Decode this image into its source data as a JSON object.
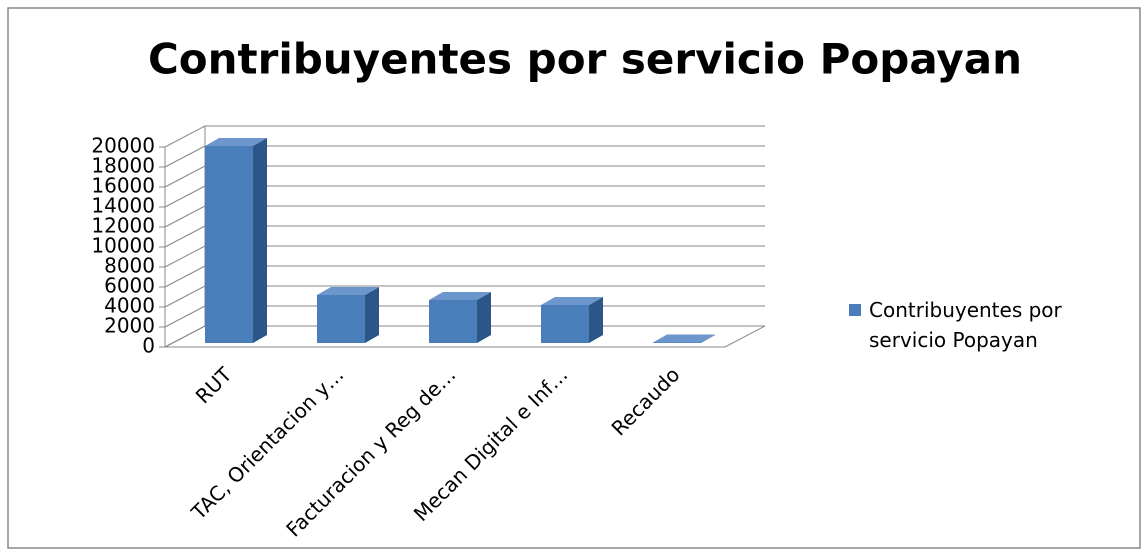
{
  "chart_data": {
    "type": "bar3d",
    "title": "Contribuyentes por servicio Popayan",
    "categories": [
      "RUT",
      "TAC, Orientacion y…",
      "Facturacion y Reg de…",
      "Mecan Digital e Inf…",
      "Recaudo"
    ],
    "series": [
      {
        "name": "Contribuyentes por servicio Popayan",
        "color": "#4a7ebb",
        "values": [
          19700,
          4800,
          4300,
          3800,
          50
        ]
      }
    ],
    "ylim": [
      0,
      20000
    ],
    "yticks": [
      0,
      2000,
      4000,
      6000,
      8000,
      10000,
      12000,
      14000,
      16000,
      18000,
      20000
    ],
    "grid": true,
    "legend": "right"
  }
}
